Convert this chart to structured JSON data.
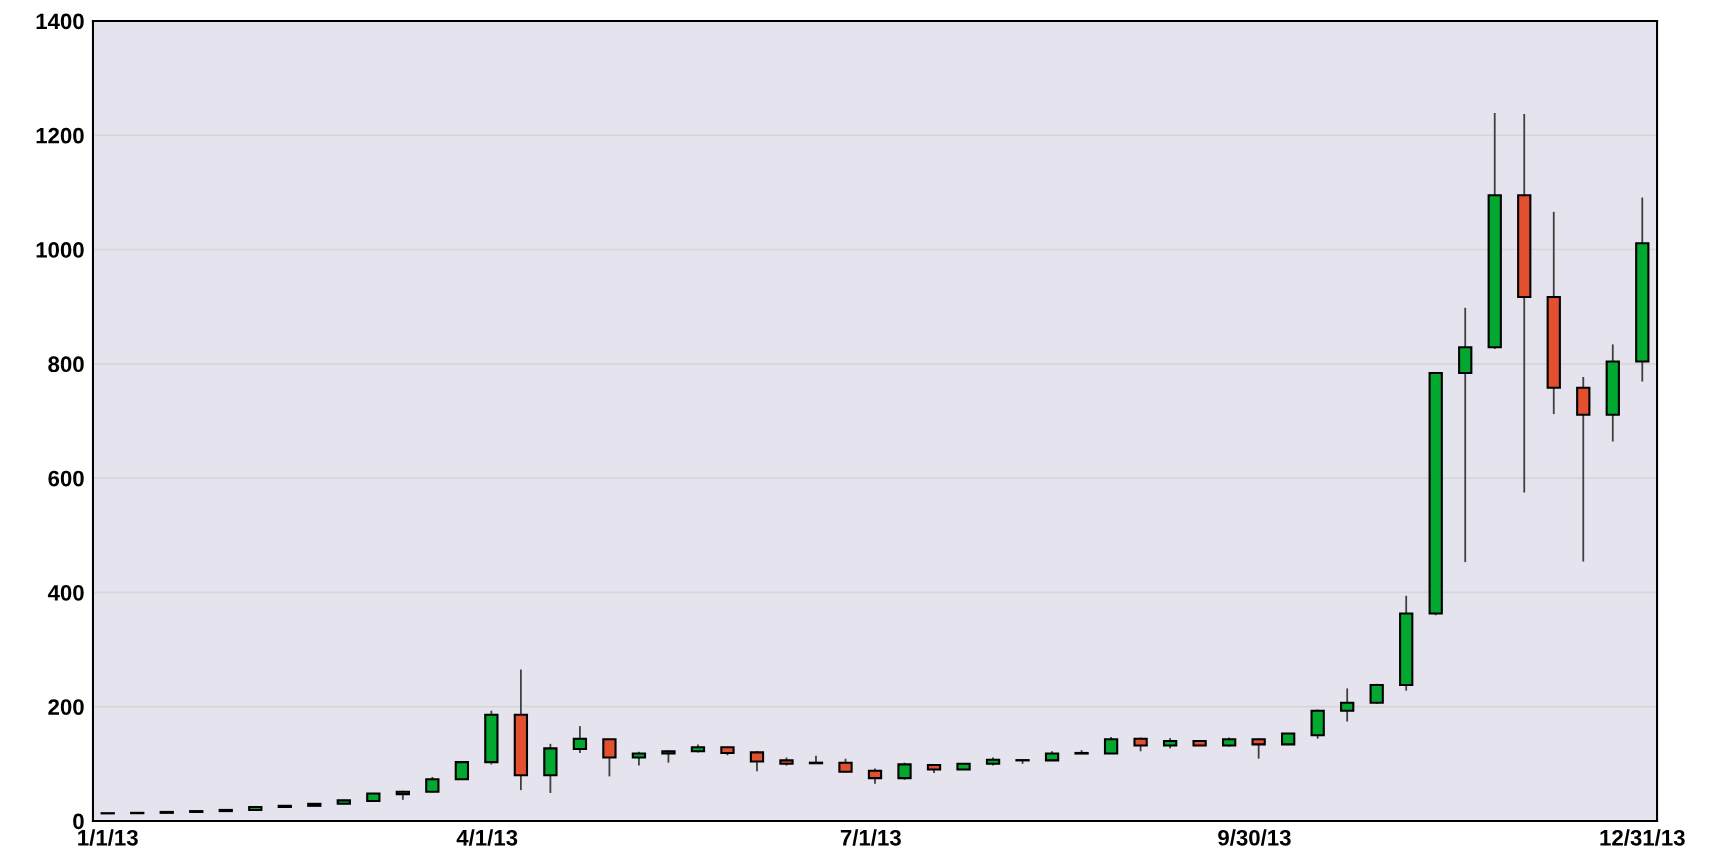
{
  "chart_data": {
    "type": "candlestick",
    "x": [
      "2013-01-01",
      "2013-01-08",
      "2013-01-15",
      "2013-01-22",
      "2013-01-29",
      "2013-02-05",
      "2013-02-12",
      "2013-02-19",
      "2013-02-26",
      "2013-03-05",
      "2013-03-12",
      "2013-03-19",
      "2013-03-26",
      "2013-04-02",
      "2013-04-09",
      "2013-04-16",
      "2013-04-23",
      "2013-04-30",
      "2013-05-07",
      "2013-05-14",
      "2013-05-21",
      "2013-05-28",
      "2013-06-04",
      "2013-06-11",
      "2013-06-18",
      "2013-06-25",
      "2013-07-02",
      "2013-07-09",
      "2013-07-16",
      "2013-07-23",
      "2013-07-30",
      "2013-08-06",
      "2013-08-13",
      "2013-08-20",
      "2013-08-27",
      "2013-09-03",
      "2013-09-10",
      "2013-09-17",
      "2013-09-24",
      "2013-10-01",
      "2013-10-08",
      "2013-10-15",
      "2013-10-22",
      "2013-10-29",
      "2013-11-05",
      "2013-11-12",
      "2013-11-19",
      "2013-11-26",
      "2013-12-03",
      "2013-12-10",
      "2013-12-17",
      "2013-12-24",
      "2013-12-31"
    ],
    "ohlc": [
      [
        13.3,
        13.8,
        13.1,
        13.6
      ],
      [
        13.6,
        14.3,
        13.5,
        14.2
      ],
      [
        14.2,
        16,
        14.1,
        15.8
      ],
      [
        15.8,
        17.6,
        15.6,
        17.3
      ],
      [
        17.3,
        19.6,
        17,
        19.3
      ],
      [
        19.3,
        25,
        19,
        24.5
      ],
      [
        24.5,
        27.5,
        23,
        26.5
      ],
      [
        26.5,
        30.5,
        26,
        30
      ],
      [
        30,
        37,
        29,
        36
      ],
      [
        35,
        49,
        34,
        48
      ],
      [
        47,
        53,
        37,
        51
      ],
      [
        51,
        77,
        50,
        73
      ],
      [
        73,
        105,
        72,
        103
      ],
      [
        103,
        193,
        99,
        186
      ],
      [
        186,
        265,
        54,
        80
      ],
      [
        80,
        135,
        49,
        127
      ],
      [
        126,
        166,
        119,
        144
      ],
      [
        143,
        144,
        78,
        111
      ],
      [
        111,
        121,
        97,
        118
      ],
      [
        118,
        124,
        102,
        122
      ],
      [
        122,
        134,
        120,
        129
      ],
      [
        129,
        130,
        115,
        119
      ],
      [
        120,
        122,
        87,
        104
      ],
      [
        106,
        111,
        97,
        100
      ],
      [
        101,
        114,
        100,
        102
      ],
      [
        102,
        109,
        85,
        86
      ],
      [
        88,
        92,
        65,
        75
      ],
      [
        75,
        102,
        72,
        99
      ],
      [
        98,
        99,
        84,
        90
      ],
      [
        90,
        101,
        90,
        100
      ],
      [
        100,
        111,
        97,
        107
      ],
      [
        106,
        107,
        100,
        106.5
      ],
      [
        106,
        122,
        105,
        118
      ],
      [
        118,
        124,
        117,
        119
      ],
      [
        118,
        147,
        117,
        143
      ],
      [
        144,
        146,
        122,
        132
      ],
      [
        132,
        145,
        127,
        140
      ],
      [
        140,
        141,
        131,
        132
      ],
      [
        132,
        146,
        130,
        143
      ],
      [
        143,
        144,
        109,
        134
      ],
      [
        134,
        153,
        134,
        153
      ],
      [
        150,
        195,
        144,
        193
      ],
      [
        193,
        232,
        174,
        207
      ],
      [
        207,
        240,
        205,
        238
      ],
      [
        238,
        394,
        228,
        363
      ],
      [
        363,
        785,
        360,
        784
      ],
      [
        784,
        898,
        453,
        829
      ],
      [
        829,
        1239,
        826,
        1095
      ],
      [
        1095,
        1237,
        575,
        917
      ],
      [
        917,
        1066,
        712,
        758
      ],
      [
        758,
        777,
        454,
        711
      ],
      [
        711,
        834,
        664,
        804
      ],
      [
        804,
        1091,
        769,
        1011
      ]
    ],
    "colors": [
      "#02a82f",
      "#02a82f",
      "#02a82f",
      "#02a82f",
      "#02a82f",
      "#02a82f",
      "#02a82f",
      "#02a82f",
      "#02a82f",
      "#02a82f",
      "#02a82f",
      "#02a82f",
      "#02a82f",
      "#02a82f",
      "#e2502f",
      "#02a82f",
      "#02a82f",
      "#e2502f",
      "#02a82f",
      "#02a82f",
      "#02a82f",
      "#e2502f",
      "#e2502f",
      "#e2502f",
      "#02a82f",
      "#e2502f",
      "#e2502f",
      "#02a82f",
      "#e2502f",
      "#02a82f",
      "#02a82f",
      "#02a82f",
      "#02a82f",
      "#02a82f",
      "#02a82f",
      "#e2502f",
      "#02a82f",
      "#e2502f",
      "#02a82f",
      "#e2502f",
      "#02a82f",
      "#02a82f",
      "#02a82f",
      "#02a82f",
      "#02a82f",
      "#02a82f",
      "#02a82f",
      "#02a82f",
      "#e2502f",
      "#e2502f",
      "#e2502f",
      "#02a82f",
      "#02a82f"
    ],
    "xlim": [
      "2012-12-28T12:00",
      "2014-01-03T12:00"
    ],
    "xticks": [
      {
        "value": "2013-01-01",
        "label": "1/1/13"
      },
      {
        "value": "2013-04-01",
        "label": "4/1/13"
      },
      {
        "value": "2013-07-01",
        "label": "7/1/13"
      },
      {
        "value": "2013-09-30",
        "label": "9/30/13"
      },
      {
        "value": "2013-12-31",
        "label": "12/31/13"
      }
    ],
    "ylim": [
      0,
      1400
    ],
    "yticks": [
      0,
      200,
      400,
      600,
      800,
      1000,
      1200,
      1400
    ],
    "grid": "y"
  }
}
